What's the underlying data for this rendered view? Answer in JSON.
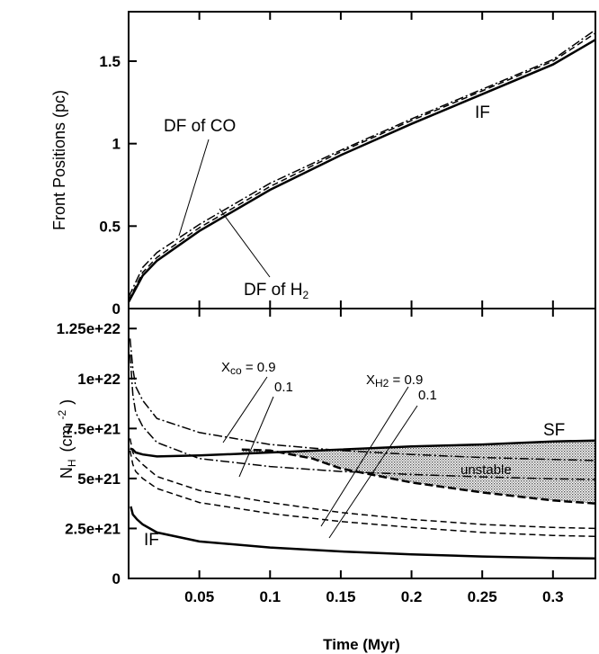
{
  "chart_data": [
    {
      "type": "line",
      "panel": "top",
      "ylabel": "Front Positions (pc)",
      "xlim": [
        0,
        0.33
      ],
      "ylim": [
        0,
        1.8
      ],
      "yticks": [
        0,
        0.5,
        1,
        1.5
      ],
      "ytick_labels": [
        "0",
        "0.5",
        "1",
        "1.5"
      ],
      "series": [
        {
          "name": "IF",
          "style": "solid",
          "x": [
            0,
            0.01,
            0.02,
            0.05,
            0.1,
            0.15,
            0.2,
            0.25,
            0.3,
            0.33
          ],
          "y": [
            0.04,
            0.2,
            0.29,
            0.47,
            0.72,
            0.93,
            1.12,
            1.3,
            1.48,
            1.63
          ]
        },
        {
          "name": "DF of H2",
          "style": "dashed",
          "x": [
            0,
            0.01,
            0.02,
            0.05,
            0.1,
            0.15,
            0.2,
            0.25,
            0.3,
            0.33
          ],
          "y": [
            0.05,
            0.22,
            0.31,
            0.49,
            0.74,
            0.95,
            1.14,
            1.32,
            1.5,
            1.67
          ]
        },
        {
          "name": "DF of CO",
          "style": "dashdot",
          "x": [
            0,
            0.01,
            0.02,
            0.05,
            0.1,
            0.15,
            0.2,
            0.25,
            0.3,
            0.33
          ],
          "y": [
            0.07,
            0.25,
            0.34,
            0.51,
            0.76,
            0.96,
            1.15,
            1.33,
            1.51,
            1.69
          ]
        }
      ],
      "annotations": {
        "df_co": "DF of CO",
        "if_label": "IF",
        "df_h2_main": "DF of H",
        "df_h2_sub": "2"
      }
    },
    {
      "type": "line",
      "panel": "bottom",
      "xlabel": "Time (Myr)",
      "xlim": [
        0,
        0.33
      ],
      "ylim": [
        0,
        1.35e+22
      ],
      "xticks": [
        0.05,
        0.1,
        0.15,
        0.2,
        0.25,
        0.3
      ],
      "xtick_labels": [
        "0.05",
        "0.1",
        "0.15",
        "0.2",
        "0.25",
        "0.3"
      ],
      "yticks": [
        0,
        2.5e+21,
        5e+21,
        7.5e+21,
        1e+22,
        1.25e+22
      ],
      "ytick_labels": [
        "0",
        "2.5e+21",
        "5e+21",
        "7.5e+21",
        "1e+22",
        "1.25e+22"
      ],
      "ylabel_parts": {
        "n": "N",
        "h": "H",
        "unit_open": "(cm",
        "exp": "-2",
        "unit_close": ")"
      },
      "series": [
        {
          "name": "IF",
          "style": "solid",
          "x": [
            0.0015,
            0.003,
            0.006,
            0.01,
            0.02,
            0.05,
            0.1,
            0.15,
            0.2,
            0.25,
            0.3,
            0.33
          ],
          "y": [
            3.6e+21,
            3.2e+21,
            2.95e+21,
            2.7e+21,
            2.3e+21,
            1.85e+21,
            1.55e+21,
            1.35e+21,
            1.2e+21,
            1.1e+21,
            1.02e+21,
            1e+21
          ]
        },
        {
          "name": "SF",
          "style": "solid",
          "x": [
            0.001,
            0.003,
            0.005,
            0.01,
            0.02,
            0.05,
            0.1,
            0.15,
            0.2,
            0.25,
            0.3,
            0.33
          ],
          "y": [
            6.5e+21,
            6.45e+21,
            6.3e+21,
            6.2e+21,
            6.1e+21,
            6.15e+21,
            6.3e+21,
            6.45e+21,
            6.6e+21,
            6.7e+21,
            6.85e+21,
            6.9e+21
          ]
        },
        {
          "name": "DF of CO, Xco = 0.9",
          "style": "dashdot",
          "x": [
            0.001,
            0.003,
            0.005,
            0.01,
            0.02,
            0.05,
            0.1,
            0.15,
            0.2,
            0.25,
            0.3,
            0.33
          ],
          "y": [
            1.2e+22,
            1.05e+22,
            9.6e+21,
            8.9e+21,
            8e+21,
            7.3e+21,
            6.7e+21,
            6.4e+21,
            6.2e+21,
            6.05e+21,
            5.95e+21,
            5.9e+21
          ]
        },
        {
          "name": "DF of CO, Xco = 0.1",
          "style": "dashdot",
          "x": [
            0.001,
            0.003,
            0.005,
            0.01,
            0.02,
            0.05,
            0.1,
            0.15,
            0.2,
            0.25,
            0.3,
            0.33
          ],
          "y": [
            1.12e+22,
            9.2e+21,
            8.3e+21,
            7.6e+21,
            6.8e+21,
            6e+21,
            5.6e+21,
            5.35e+21,
            5.2e+21,
            5.08e+21,
            4.98e+21,
            4.95e+21
          ]
        },
        {
          "name": "DF of H2, XH2 = 0.9",
          "style": "dashed",
          "x": [
            0.001,
            0.003,
            0.005,
            0.01,
            0.02,
            0.05,
            0.1,
            0.15,
            0.2,
            0.25,
            0.3,
            0.33
          ],
          "y": [
            7e+21,
            6.3e+21,
            6.05e+21,
            5.7e+21,
            5.1e+21,
            4.4e+21,
            3.8e+21,
            3.3e+21,
            2.95e+21,
            2.7e+21,
            2.55e+21,
            2.5e+21
          ]
        },
        {
          "name": "DF of H2, XH2 = 0.1",
          "style": "dashed",
          "x": [
            0.001,
            0.003,
            0.005,
            0.01,
            0.02,
            0.05,
            0.1,
            0.15,
            0.2,
            0.25,
            0.3,
            0.33
          ],
          "y": [
            6.4e+21,
            5.7e+21,
            5.35e+21,
            5e+21,
            4.5e+21,
            3.8e+21,
            3.25e+21,
            2.85e+21,
            2.55e+21,
            2.3e+21,
            2.15e+21,
            2.1e+21
          ]
        },
        {
          "name": "unstable boundary",
          "style": "dashed-thick",
          "x": [
            0.08,
            0.1,
            0.13,
            0.15,
            0.2,
            0.25,
            0.3,
            0.33
          ],
          "y": [
            6.45e+21,
            6.4e+21,
            6e+21,
            5.5e+21,
            4.8e+21,
            4.3e+21,
            3.9e+21,
            3.75e+21
          ]
        }
      ],
      "annotations": {
        "sf_label": "SF",
        "if_label": "IF",
        "unstable": "unstable",
        "xco_x": "X",
        "xco_sub": "co",
        "xco_val": " = 0.9",
        "xco_val2": "0.1",
        "xh2_x": "X",
        "xh2_sub": "H2",
        "xh2_val": " = 0.9",
        "xh2_val2": "0.1"
      }
    }
  ]
}
